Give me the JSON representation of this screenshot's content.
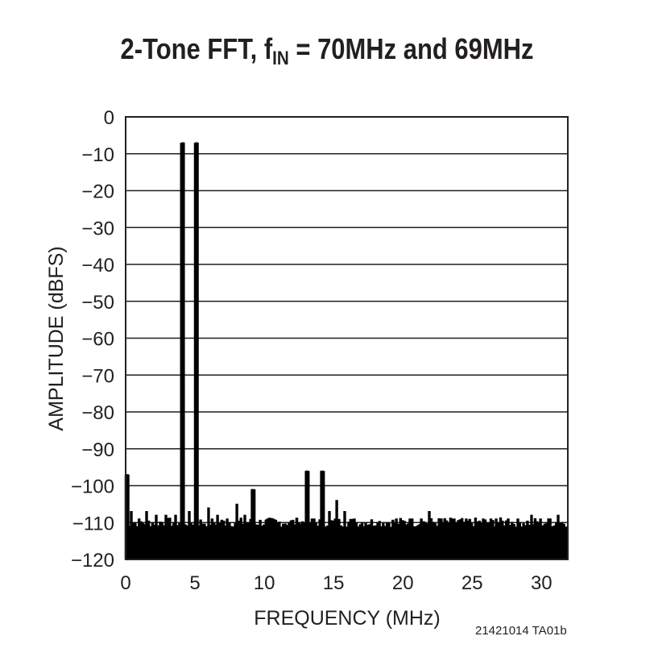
{
  "title": {
    "main": "2-Tone FFT, f",
    "sub": "IN",
    "rest": " = 70MHz and 69MHz"
  },
  "figure_code": "21421014 TA01b",
  "chart_data": {
    "type": "line",
    "title": "2-Tone FFT, fIN = 70MHz and 69MHz",
    "xlabel": "FREQUENCY (MHz)",
    "ylabel": "AMPLITUDE (dBFS)",
    "xlim": [
      0,
      31.9
    ],
    "ylim": [
      -120,
      0
    ],
    "x_ticks": [
      0,
      5,
      10,
      15,
      20,
      25,
      30
    ],
    "y_ticks": [
      0,
      -10,
      -20,
      -30,
      -40,
      -50,
      -60,
      -70,
      -80,
      -90,
      -100,
      -110,
      -120
    ],
    "grid": "horizontal",
    "fill": "#000000",
    "noise_floor": -110,
    "peaks": [
      {
        "x": 0.1,
        "y": -97
      },
      {
        "x": 4.1,
        "y": -7
      },
      {
        "x": 5.1,
        "y": -7
      },
      {
        "x": 9.2,
        "y": -101
      },
      {
        "x": 13.1,
        "y": -96
      },
      {
        "x": 14.2,
        "y": -96
      }
    ],
    "spurs": [
      {
        "x": 0.4,
        "y": -107
      },
      {
        "x": 1.5,
        "y": -107
      },
      {
        "x": 2.2,
        "y": -108
      },
      {
        "x": 2.9,
        "y": -108
      },
      {
        "x": 3.6,
        "y": -108
      },
      {
        "x": 4.6,
        "y": -107
      },
      {
        "x": 6.0,
        "y": -106
      },
      {
        "x": 6.6,
        "y": -108
      },
      {
        "x": 7.3,
        "y": -109
      },
      {
        "x": 8.0,
        "y": -105
      },
      {
        "x": 8.6,
        "y": -108
      },
      {
        "x": 10.2,
        "y": -109
      },
      {
        "x": 11.0,
        "y": -110
      },
      {
        "x": 11.8,
        "y": -110
      },
      {
        "x": 12.5,
        "y": -110
      },
      {
        "x": 13.6,
        "y": -109
      },
      {
        "x": 14.7,
        "y": -107
      },
      {
        "x": 15.2,
        "y": -104
      },
      {
        "x": 15.8,
        "y": -107
      },
      {
        "x": 16.5,
        "y": -109
      },
      {
        "x": 17.3,
        "y": -110
      },
      {
        "x": 18.2,
        "y": -110
      },
      {
        "x": 19.5,
        "y": -109
      },
      {
        "x": 20.5,
        "y": -109
      },
      {
        "x": 21.3,
        "y": -109
      },
      {
        "x": 21.9,
        "y": -107
      },
      {
        "x": 22.8,
        "y": -109
      },
      {
        "x": 23.7,
        "y": -109
      },
      {
        "x": 24.6,
        "y": -109
      },
      {
        "x": 25.8,
        "y": -109
      },
      {
        "x": 26.7,
        "y": -109
      },
      {
        "x": 27.6,
        "y": -109
      },
      {
        "x": 28.3,
        "y": -109
      },
      {
        "x": 29.3,
        "y": -108
      },
      {
        "x": 29.9,
        "y": -109
      },
      {
        "x": 30.6,
        "y": -109
      },
      {
        "x": 31.2,
        "y": -108
      }
    ]
  }
}
